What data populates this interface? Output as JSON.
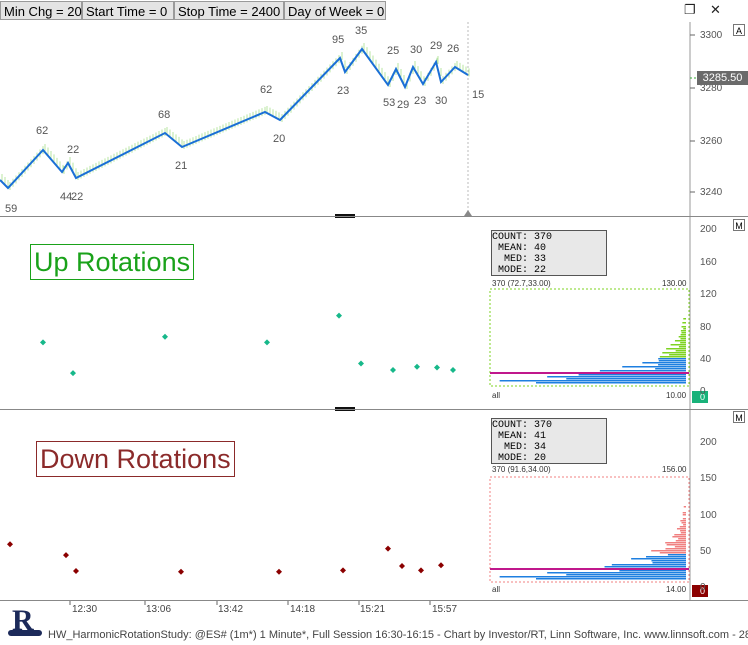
{
  "toolbar": {
    "buttons": [
      "Min Chg = 20",
      "Start Time = 0",
      "Stop Time = 2400",
      "Day of Week = 0"
    ],
    "restore_icon": "restore-icon",
    "close_icon": "close-icon"
  },
  "price_pane": {
    "flag": "A",
    "last_price": "3285.50",
    "y_ticks": [
      "3300",
      "3280",
      "3260",
      "3240"
    ],
    "swing_labels": [
      "59",
      "62",
      "44",
      "22",
      "22",
      "68",
      "21",
      "62",
      "20",
      "95",
      "23",
      "35",
      "25",
      "53",
      "29",
      "30",
      "23",
      "29",
      "30",
      "26",
      "15"
    ],
    "colors": {
      "zigzag": "#1a6fd6",
      "price_tag_bg": "#6a6a6a"
    }
  },
  "up_pane": {
    "flag": "M",
    "title": "Up Rotations",
    "stats": [
      "COUNT: 370",
      " MEAN: 40",
      "  MED: 33",
      " MODE: 22"
    ],
    "range_label": "370 (72.7,33.00)",
    "top_value": "130.00",
    "bottom_value": "10.00",
    "all_label": "all",
    "current_value": "0",
    "y_ticks": [
      "200",
      "160",
      "120",
      "80",
      "40",
      "0"
    ],
    "points": [
      60,
      22,
      67,
      60,
      93,
      34,
      26,
      30,
      29,
      26
    ],
    "colors": {
      "title": "#1aa21a",
      "dot": "#17b88a",
      "hist_high": "#7ed321",
      "hist_low": "#1e7fe0",
      "mode_line": "#c0188c"
    }
  },
  "down_pane": {
    "flag": "M",
    "title": "Down Rotations",
    "stats": [
      "COUNT: 370",
      " MEAN: 41",
      "  MED: 34",
      " MODE: 20"
    ],
    "range_label": "370 (91.6,34.00)",
    "top_value": "156.00",
    "bottom_value": "14.00",
    "all_label": "all",
    "current_value": "0",
    "y_ticks": [
      "200",
      "150",
      "100",
      "50",
      "0"
    ],
    "points": [
      59,
      44,
      22,
      21,
      21,
      23,
      53,
      29,
      23,
      30
    ],
    "colors": {
      "title": "#8b2a2a",
      "dot": "#8b0000",
      "hist_high": "#f08080",
      "hist_low": "#1e7fe0",
      "mode_line": "#c0188c"
    }
  },
  "x_axis": [
    "12:30",
    "13:06",
    "13:42",
    "14:18",
    "15:21",
    "15:57"
  ],
  "footer": {
    "logo_letter": "R",
    "text": "HW_HarmonicRotationStudy: @ES# (1m*) 1 Minute*, Full Session 16:30-16:15 - Chart by Investor/RT, Linn Software, Inc. www.linnsoft.com - 28"
  }
}
